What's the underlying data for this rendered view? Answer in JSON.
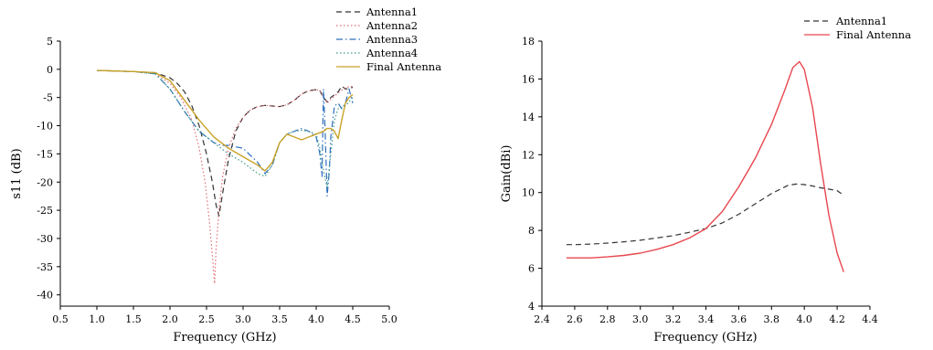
{
  "chart_data": [
    {
      "type": "line",
      "xlabel": "Frequency (GHz)",
      "ylabel": "s11 (dB)",
      "xlim": [
        0.5,
        5.0
      ],
      "ylim": [
        -42,
        5
      ],
      "xticks": [
        "0.5",
        "1.0",
        "1.5",
        "2.0",
        "2.5",
        "3.0",
        "3.5",
        "4.0",
        "4.5",
        "5.0"
      ],
      "xtick_values": [
        0.5,
        1.0,
        1.5,
        2.0,
        2.5,
        3.0,
        3.5,
        4.0,
        4.5,
        5.0
      ],
      "yticks": [
        "5",
        "0",
        "-5",
        "-10",
        "-15",
        "-20",
        "-25",
        "-30",
        "-35",
        "-40"
      ],
      "ytick_values": [
        5,
        0,
        -5,
        -10,
        -15,
        -20,
        -25,
        -30,
        -35,
        -40
      ],
      "grid": false,
      "legend_position": "top-right outside",
      "series": [
        {
          "name": "Antenna1",
          "color": "#333333",
          "style": "dashed",
          "points": [
            [
              1.0,
              -0.2
            ],
            [
              1.5,
              -0.4
            ],
            [
              1.8,
              -0.6
            ],
            [
              2.0,
              -1.5
            ],
            [
              2.1,
              -2.5
            ],
            [
              2.2,
              -4
            ],
            [
              2.3,
              -6.5
            ],
            [
              2.4,
              -10
            ],
            [
              2.5,
              -15
            ],
            [
              2.58,
              -20
            ],
            [
              2.63,
              -24
            ],
            [
              2.67,
              -26
            ],
            [
              2.72,
              -22
            ],
            [
              2.8,
              -16
            ],
            [
              2.9,
              -11
            ],
            [
              3.0,
              -8.5
            ],
            [
              3.1,
              -7.2
            ],
            [
              3.2,
              -6.6
            ],
            [
              3.3,
              -6.4
            ],
            [
              3.4,
              -6.5
            ],
            [
              3.5,
              -6.6
            ],
            [
              3.6,
              -6.3
            ],
            [
              3.7,
              -5.5
            ],
            [
              3.8,
              -4.4
            ],
            [
              3.9,
              -3.8
            ],
            [
              4.0,
              -3.6
            ],
            [
              4.05,
              -3.8
            ],
            [
              4.1,
              -5
            ],
            [
              4.15,
              -5.8
            ],
            [
              4.2,
              -5
            ],
            [
              4.3,
              -4
            ],
            [
              4.35,
              -3
            ],
            [
              4.4,
              -3.5
            ],
            [
              4.5,
              -3.2
            ]
          ]
        },
        {
          "name": "Antenna2",
          "color": "#e06c75",
          "style": "dotted",
          "points": [
            [
              1.0,
              -0.2
            ],
            [
              1.5,
              -0.4
            ],
            [
              1.8,
              -0.8
            ],
            [
              2.0,
              -2.5
            ],
            [
              2.15,
              -5
            ],
            [
              2.3,
              -9
            ],
            [
              2.4,
              -14
            ],
            [
              2.48,
              -20
            ],
            [
              2.54,
              -27
            ],
            [
              2.58,
              -33
            ],
            [
              2.61,
              -38
            ],
            [
              2.63,
              -32
            ],
            [
              2.67,
              -25
            ],
            [
              2.72,
              -19
            ],
            [
              2.8,
              -14
            ],
            [
              2.9,
              -10.5
            ],
            [
              3.0,
              -8.5
            ],
            [
              3.1,
              -7.2
            ],
            [
              3.2,
              -6.6
            ],
            [
              3.3,
              -6.4
            ],
            [
              3.4,
              -6.5
            ],
            [
              3.5,
              -6.6
            ],
            [
              3.6,
              -6.3
            ],
            [
              3.7,
              -5.5
            ],
            [
              3.8,
              -4.4
            ],
            [
              3.9,
              -3.8
            ],
            [
              4.0,
              -3.6
            ],
            [
              4.05,
              -3.8
            ],
            [
              4.1,
              -4.8
            ],
            [
              4.15,
              -6
            ],
            [
              4.2,
              -5.3
            ],
            [
              4.3,
              -4.2
            ],
            [
              4.4,
              -3.2
            ],
            [
              4.5,
              -3.0
            ]
          ]
        },
        {
          "name": "Antenna3",
          "color": "#2f6fbf",
          "style": "dashdot",
          "points": [
            [
              1.0,
              -0.2
            ],
            [
              1.5,
              -0.4
            ],
            [
              1.8,
              -0.8
            ],
            [
              2.0,
              -3.5
            ],
            [
              2.2,
              -7.5
            ],
            [
              2.4,
              -11
            ],
            [
              2.6,
              -13
            ],
            [
              2.7,
              -13.5
            ],
            [
              2.8,
              -13.5
            ],
            [
              3.0,
              -14
            ],
            [
              3.2,
              -16.5
            ],
            [
              3.3,
              -18.5
            ],
            [
              3.4,
              -17
            ],
            [
              3.5,
              -13
            ],
            [
              3.6,
              -11.5
            ],
            [
              3.7,
              -11
            ],
            [
              3.8,
              -10.5
            ],
            [
              3.9,
              -11
            ],
            [
              4.0,
              -12
            ],
            [
              4.05,
              -15
            ],
            [
              4.08,
              -19
            ],
            [
              4.1,
              -3.5
            ],
            [
              4.12,
              -10
            ],
            [
              4.15,
              -22.5
            ],
            [
              4.18,
              -18
            ],
            [
              4.2,
              -12
            ],
            [
              4.25,
              -6.5
            ],
            [
              4.3,
              -6
            ],
            [
              4.35,
              -7
            ],
            [
              4.4,
              -6
            ],
            [
              4.45,
              -3.5
            ],
            [
              4.5,
              -6
            ]
          ]
        },
        {
          "name": "Antenna4",
          "color": "#3a9a8a",
          "style": "dotted",
          "points": [
            [
              1.0,
              -0.2
            ],
            [
              1.5,
              -0.4
            ],
            [
              1.8,
              -0.8
            ],
            [
              2.0,
              -3.5
            ],
            [
              2.2,
              -7.5
            ],
            [
              2.4,
              -11
            ],
            [
              2.6,
              -13
            ],
            [
              2.8,
              -15
            ],
            [
              3.0,
              -16.5
            ],
            [
              3.2,
              -18.5
            ],
            [
              3.3,
              -19
            ],
            [
              3.4,
              -17
            ],
            [
              3.5,
              -13
            ],
            [
              3.6,
              -11.5
            ],
            [
              3.7,
              -11
            ],
            [
              3.8,
              -10.8
            ],
            [
              3.9,
              -11
            ],
            [
              4.0,
              -11.5
            ],
            [
              4.05,
              -14
            ],
            [
              4.1,
              -18
            ],
            [
              4.15,
              -21
            ],
            [
              4.2,
              -15
            ],
            [
              4.25,
              -9
            ],
            [
              4.3,
              -7
            ],
            [
              4.4,
              -6.5
            ],
            [
              4.5,
              -5
            ]
          ]
        },
        {
          "name": "Final Antenna",
          "color": "#c8a227",
          "style": "solid",
          "points": [
            [
              1.0,
              -0.2
            ],
            [
              1.5,
              -0.4
            ],
            [
              1.8,
              -0.6
            ],
            [
              2.0,
              -2
            ],
            [
              2.2,
              -5.5
            ],
            [
              2.4,
              -9
            ],
            [
              2.6,
              -12
            ],
            [
              2.8,
              -14
            ],
            [
              3.0,
              -15.5
            ],
            [
              3.2,
              -17
            ],
            [
              3.3,
              -18
            ],
            [
              3.4,
              -16.5
            ],
            [
              3.5,
              -13
            ],
            [
              3.6,
              -11.5
            ],
            [
              3.7,
              -12
            ],
            [
              3.8,
              -12.5
            ],
            [
              3.9,
              -12
            ],
            [
              4.0,
              -11.5
            ],
            [
              4.1,
              -11
            ],
            [
              4.15,
              -10.5
            ],
            [
              4.2,
              -10.5
            ],
            [
              4.25,
              -11
            ],
            [
              4.3,
              -12.3
            ],
            [
              4.35,
              -9
            ],
            [
              4.4,
              -6
            ],
            [
              4.45,
              -5
            ],
            [
              4.5,
              -4.5
            ]
          ]
        }
      ]
    },
    {
      "type": "line",
      "xlabel": "Frequency (GHz)",
      "ylabel": "Gain(dBi)",
      "xlim": [
        2.4,
        4.4
      ],
      "ylim": [
        4,
        18
      ],
      "xticks": [
        "2.4",
        "2.6",
        "2.8",
        "3.0",
        "3.2",
        "3.4",
        "3.6",
        "3.8",
        "4.0",
        "4.2",
        "4.4"
      ],
      "xtick_values": [
        2.4,
        2.6,
        2.8,
        3.0,
        3.2,
        3.4,
        3.6,
        3.8,
        4.0,
        4.2,
        4.4
      ],
      "yticks": [
        "4",
        "6",
        "8",
        "10",
        "12",
        "14",
        "16",
        "18"
      ],
      "ytick_values": [
        4,
        6,
        8,
        10,
        12,
        14,
        16,
        18
      ],
      "grid": false,
      "legend_position": "top-right outside",
      "series": [
        {
          "name": "Antenna1",
          "color": "#333333",
          "style": "dashed",
          "points": [
            [
              2.55,
              7.25
            ],
            [
              2.6,
              7.25
            ],
            [
              2.7,
              7.28
            ],
            [
              2.8,
              7.33
            ],
            [
              2.9,
              7.4
            ],
            [
              3.0,
              7.48
            ],
            [
              3.1,
              7.6
            ],
            [
              3.2,
              7.72
            ],
            [
              3.3,
              7.9
            ],
            [
              3.4,
              8.1
            ],
            [
              3.5,
              8.4
            ],
            [
              3.6,
              8.85
            ],
            [
              3.7,
              9.4
            ],
            [
              3.8,
              9.95
            ],
            [
              3.9,
              10.38
            ],
            [
              3.95,
              10.45
            ],
            [
              4.0,
              10.42
            ],
            [
              4.05,
              10.35
            ],
            [
              4.1,
              10.25
            ],
            [
              4.15,
              10.18
            ],
            [
              4.2,
              10.1
            ],
            [
              4.24,
              9.85
            ]
          ]
        },
        {
          "name": "Final Antenna",
          "color": "#e8474f",
          "style": "solid",
          "points": [
            [
              2.55,
              6.55
            ],
            [
              2.6,
              6.55
            ],
            [
              2.7,
              6.55
            ],
            [
              2.8,
              6.6
            ],
            [
              2.9,
              6.68
            ],
            [
              3.0,
              6.8
            ],
            [
              3.1,
              7.0
            ],
            [
              3.2,
              7.25
            ],
            [
              3.3,
              7.6
            ],
            [
              3.4,
              8.1
            ],
            [
              3.5,
              9.0
            ],
            [
              3.6,
              10.3
            ],
            [
              3.7,
              11.8
            ],
            [
              3.8,
              13.6
            ],
            [
              3.88,
              15.4
            ],
            [
              3.93,
              16.6
            ],
            [
              3.97,
              16.92
            ],
            [
              4.0,
              16.5
            ],
            [
              4.05,
              14.5
            ],
            [
              4.1,
              11.5
            ],
            [
              4.15,
              8.8
            ],
            [
              4.2,
              6.8
            ],
            [
              4.24,
              5.8
            ]
          ]
        }
      ]
    }
  ]
}
